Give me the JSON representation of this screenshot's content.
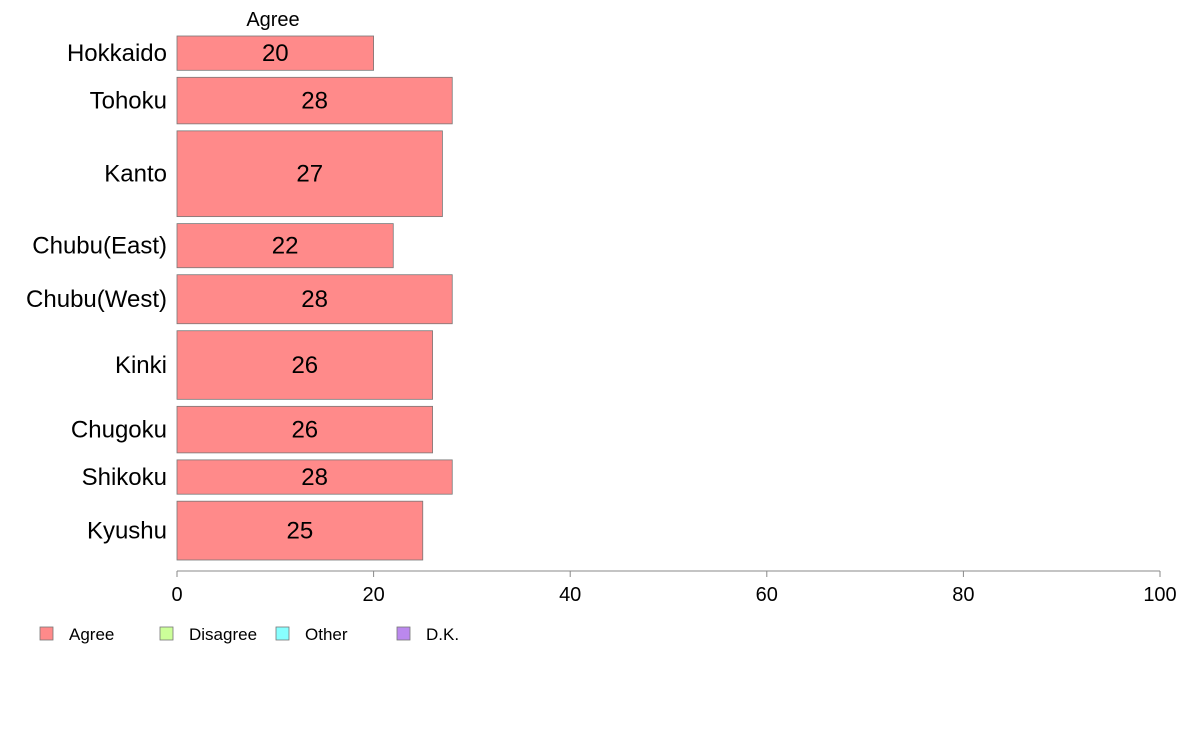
{
  "chart_data": {
    "type": "bar",
    "orientation": "horizontal",
    "column_header": "Agree",
    "categories": [
      "Hokkaido",
      "Tohoku",
      "Kanto",
      "Chubu(East)",
      "Chubu(West)",
      "Kinki",
      "Chugoku",
      "Shikoku",
      "Kyushu"
    ],
    "series": [
      {
        "name": "Agree",
        "values": [
          20,
          28,
          27,
          22,
          28,
          26,
          26,
          28,
          25
        ],
        "color": "#ff8a8a"
      }
    ],
    "bar_weights": [
      0.7,
      0.95,
      1.75,
      0.9,
      1.0,
      1.4,
      0.95,
      0.7,
      1.2
    ],
    "xlim": [
      0,
      100
    ],
    "xticks": [
      0,
      20,
      40,
      60,
      80,
      100
    ],
    "grid": false,
    "legend_position": "bottom-left",
    "legend": [
      {
        "label": "Agree",
        "color": "#ff8a8a"
      },
      {
        "label": "Disagree",
        "color": "#ccff99"
      },
      {
        "label": "Other",
        "color": "#88ffff"
      },
      {
        "label": "D.K.",
        "color": "#bb88ee"
      }
    ]
  }
}
